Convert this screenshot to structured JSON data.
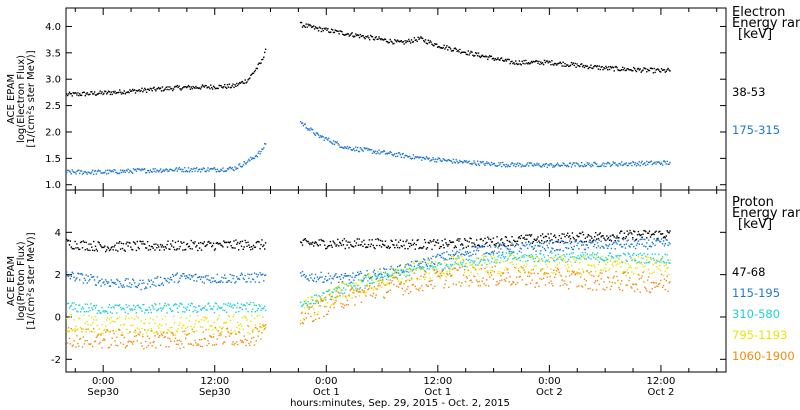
{
  "chart_data": [
    {
      "type": "scatter",
      "ylabel_lines": [
        "ACE EPAM",
        "log(Electron Flux)",
        "[1/(cm²s ster MeV)]"
      ],
      "ylim": [
        0.9,
        4.35
      ],
      "yticks": [
        "1.0",
        "1.5",
        "2.0",
        "2.5",
        "3.0",
        "3.5",
        "4.0"
      ],
      "xlim": [
        "2015-09-29 20:00",
        "2015-10-02 19:00"
      ],
      "data_gap": [
        "2015-09-30 17:30",
        "2015-09-30 21:10"
      ],
      "legend_title": [
        "Electron",
        "Energy range",
        "[keV]"
      ],
      "series": [
        {
          "name": "38-53",
          "color": "#000000",
          "points": [
            [
              "2015-09-29 20:00",
              2.72
            ],
            [
              "2015-09-30 00:00",
              2.75
            ],
            [
              "2015-09-30 04:00",
              2.8
            ],
            [
              "2015-09-30 08:00",
              2.85
            ],
            [
              "2015-09-30 12:00",
              2.87
            ],
            [
              "2015-09-30 14:00",
              2.88
            ],
            [
              "2015-09-30 15:30",
              3.0
            ],
            [
              "2015-09-30 17:00",
              3.35
            ],
            [
              "2015-09-30 17:30",
              3.65
            ],
            [
              "2015-09-30 21:10",
              4.05
            ],
            [
              "2015-09-30 23:00",
              3.97
            ],
            [
              "2015-10-01 04:00",
              3.82
            ],
            [
              "2015-10-01 08:00",
              3.7
            ],
            [
              "2015-10-01 10:00",
              3.78
            ],
            [
              "2015-10-01 12:00",
              3.65
            ],
            [
              "2015-10-01 16:00",
              3.48
            ],
            [
              "2015-10-01 20:00",
              3.33
            ],
            [
              "2015-10-02 00:00",
              3.33
            ],
            [
              "2015-10-02 06:00",
              3.22
            ],
            [
              "2015-10-02 12:00",
              3.17
            ],
            [
              "2015-10-02 13:00",
              3.18
            ]
          ]
        },
        {
          "name": "175-315",
          "color": "#1f78d0",
          "points": [
            [
              "2015-09-29 20:00",
              1.25
            ],
            [
              "2015-09-30 00:00",
              1.25
            ],
            [
              "2015-09-30 04:00",
              1.28
            ],
            [
              "2015-09-30 08:00",
              1.3
            ],
            [
              "2015-09-30 12:00",
              1.3
            ],
            [
              "2015-09-30 14:00",
              1.32
            ],
            [
              "2015-09-30 15:30",
              1.45
            ],
            [
              "2015-09-30 17:00",
              1.65
            ],
            [
              "2015-09-30 17:30",
              1.85
            ],
            [
              "2015-09-30 21:10",
              2.2
            ],
            [
              "2015-09-30 23:00",
              1.95
            ],
            [
              "2015-10-01 02:00",
              1.72
            ],
            [
              "2015-10-01 06:00",
              1.62
            ],
            [
              "2015-10-01 10:00",
              1.52
            ],
            [
              "2015-10-01 14:00",
              1.45
            ],
            [
              "2015-10-01 18:00",
              1.4
            ],
            [
              "2015-10-02 00:00",
              1.38
            ],
            [
              "2015-10-02 06:00",
              1.4
            ],
            [
              "2015-10-02 13:00",
              1.43
            ]
          ]
        }
      ]
    },
    {
      "type": "scatter",
      "ylabel_lines": [
        "ACE EPAM",
        "log(Proton Flux)",
        "[1/(cm²s ster MeV)]"
      ],
      "ylim": [
        -2.6,
        6.0
      ],
      "yticks": [
        "-2",
        "0",
        "2",
        "4"
      ],
      "xlim": [
        "2015-09-29 20:00",
        "2015-10-02 19:00"
      ],
      "data_gap": [
        "2015-09-30 17:30",
        "2015-09-30 21:10"
      ],
      "xlabel": "hours:minutes, Sep. 29, 2015 - Oct. 2, 2015",
      "xticks": [
        {
          "t": "2015-09-30 00:00",
          "label": "0:00",
          "sub": "Sep30"
        },
        {
          "t": "2015-09-30 12:00",
          "label": "12:00",
          "sub": "Sep30"
        },
        {
          "t": "2015-10-01 00:00",
          "label": "0:00",
          "sub": "Oct 1"
        },
        {
          "t": "2015-10-01 12:00",
          "label": "12:00",
          "sub": "Oct 1"
        },
        {
          "t": "2015-10-02 00:00",
          "label": "0:00",
          "sub": "Oct 2"
        },
        {
          "t": "2015-10-02 12:00",
          "label": "12:00",
          "sub": "Oct 2"
        }
      ],
      "legend_title": [
        "Proton",
        "Energy range",
        "[keV]"
      ],
      "series": [
        {
          "name": "47-68",
          "color": "#000000",
          "points": [
            [
              "2015-09-29 20:00",
              3.5
            ],
            [
              "2015-09-30 00:00",
              3.35
            ],
            [
              "2015-09-30 08:00",
              3.4
            ],
            [
              "2015-09-30 17:30",
              3.45
            ],
            [
              "2015-09-30 21:10",
              3.5
            ],
            [
              "2015-10-01 06:00",
              3.5
            ],
            [
              "2015-10-01 12:00",
              3.45
            ],
            [
              "2015-10-01 18:00",
              3.6
            ],
            [
              "2015-10-02 00:00",
              3.75
            ],
            [
              "2015-10-02 06:00",
              3.85
            ],
            [
              "2015-10-02 13:00",
              3.95
            ]
          ]
        },
        {
          "name": "115-195",
          "color": "#1f78d0",
          "points": [
            [
              "2015-09-29 20:00",
              2.0
            ],
            [
              "2015-09-30 00:00",
              1.7
            ],
            [
              "2015-09-30 04:00",
              1.55
            ],
            [
              "2015-09-30 08:00",
              1.9
            ],
            [
              "2015-09-30 12:00",
              1.85
            ],
            [
              "2015-09-30 17:30",
              1.9
            ],
            [
              "2015-09-30 21:10",
              1.95
            ],
            [
              "2015-10-01 02:00",
              1.85
            ],
            [
              "2015-10-01 06:00",
              2.1
            ],
            [
              "2015-10-01 10:00",
              2.5
            ],
            [
              "2015-10-01 12:00",
              2.8
            ],
            [
              "2015-10-01 16:00",
              3.2
            ],
            [
              "2015-10-01 22:00",
              3.35
            ],
            [
              "2015-10-02 06:00",
              3.45
            ],
            [
              "2015-10-02 13:00",
              3.5
            ]
          ]
        },
        {
          "name": "310-580",
          "color": "#20d0d0",
          "points": [
            [
              "2015-09-29 20:00",
              0.5
            ],
            [
              "2015-09-30 00:00",
              0.4
            ],
            [
              "2015-09-30 08:00",
              0.45
            ],
            [
              "2015-09-30 17:30",
              0.5
            ],
            [
              "2015-09-30 21:10",
              0.6
            ],
            [
              "2015-10-01 01:00",
              1.2
            ],
            [
              "2015-10-01 05:00",
              1.8
            ],
            [
              "2015-10-01 10:00",
              2.3
            ],
            [
              "2015-10-01 14:00",
              2.6
            ],
            [
              "2015-10-01 20:00",
              2.85
            ],
            [
              "2015-10-02 06:00",
              2.85
            ],
            [
              "2015-10-02 13:00",
              2.8
            ]
          ]
        },
        {
          "name": "795-1193",
          "color": "#e6e600",
          "points": [
            [
              "2015-09-29 20:00",
              -0.3
            ],
            [
              "2015-09-30 00:00",
              -0.4
            ],
            [
              "2015-09-30 08:00",
              -0.35
            ],
            [
              "2015-09-30 17:30",
              -0.3
            ],
            [
              "2015-09-30 21:10",
              0.3
            ],
            [
              "2015-10-01 01:00",
              1.1
            ],
            [
              "2015-10-01 05:00",
              1.7
            ],
            [
              "2015-10-01 10:00",
              2.2
            ],
            [
              "2015-10-01 14:00",
              2.45
            ],
            [
              "2015-10-01 20:00",
              2.5
            ],
            [
              "2015-10-02 06:00",
              2.45
            ],
            [
              "2015-10-02 13:00",
              2.4
            ]
          ]
        },
        {
          "name": "1060-1900",
          "color": "#f08c10",
          "points": [
            [
              "2015-09-29 20:00",
              -0.9
            ],
            [
              "2015-09-30 00:00",
              -1.0
            ],
            [
              "2015-09-30 08:00",
              -1.0
            ],
            [
              "2015-09-30 17:30",
              -0.8
            ],
            [
              "2015-09-30 21:10",
              0.0
            ],
            [
              "2015-10-01 01:00",
              0.8
            ],
            [
              "2015-10-01 05:00",
              1.3
            ],
            [
              "2015-10-01 10:00",
              1.7
            ],
            [
              "2015-10-01 14:00",
              1.95
            ],
            [
              "2015-10-01 20:00",
              1.95
            ],
            [
              "2015-10-02 06:00",
              1.75
            ],
            [
              "2015-10-02 13:00",
              1.6
            ]
          ]
        }
      ]
    }
  ]
}
